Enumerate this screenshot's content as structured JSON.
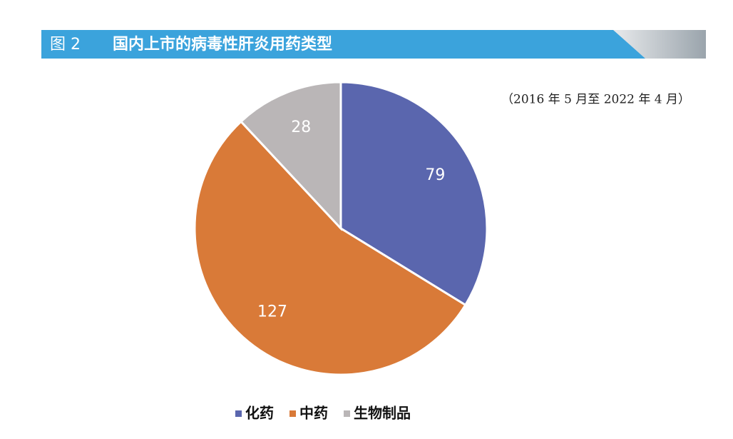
{
  "chart_data": {
    "type": "pie",
    "figure_label": "图 2",
    "title": "国内上市的病毒性肝炎用药类型",
    "subtitle": "（2016 年 5 月至 2022 年 4 月）",
    "categories": [
      "化药",
      "中药",
      "生物制品"
    ],
    "values": [
      79,
      127,
      28
    ],
    "colors": [
      "#5a66ae",
      "#d97a38",
      "#bab6b7"
    ],
    "legend": "bottom"
  }
}
